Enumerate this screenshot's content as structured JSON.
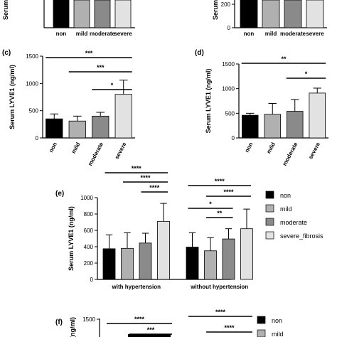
{
  "colors": {
    "non": "#000000",
    "mild": "#b0b0b0",
    "moderate": "#8a8a8a",
    "severe": "#e2e2e2"
  },
  "chart_data": [
    {
      "panel": "(a)",
      "type": "bar",
      "categories": [
        "non",
        "mild",
        "moderate",
        "severe"
      ],
      "values": [
        300,
        300,
        300,
        300
      ],
      "ylabel": "Serum",
      "yticks": [],
      "ylim": [
        0,
        300
      ]
    },
    {
      "panel": "(b)",
      "type": "bar",
      "categories": [
        "non",
        "mild",
        "moderate",
        "severe"
      ],
      "values": [
        1400,
        1400,
        1400,
        1400
      ],
      "ylabel": "Serum",
      "yticks": [
        "0",
        "200"
      ],
      "ylim": [
        0,
        400
      ]
    },
    {
      "panel": "(c)",
      "type": "bar",
      "categories": [
        "non",
        "mild",
        "moderate",
        "severe"
      ],
      "values": [
        350,
        310,
        400,
        800
      ],
      "errors": [
        90,
        90,
        70,
        260
      ],
      "ylabel": "Serum LYVE1 (ng/ml)",
      "yticks": [
        "0",
        "500",
        "1000",
        "1500"
      ],
      "ylim": [
        0,
        1500
      ],
      "significance": [
        {
          "from": 0,
          "to": 3,
          "label": "***"
        },
        {
          "from": 1,
          "to": 3,
          "label": "***"
        },
        {
          "from": 2,
          "to": 3,
          "label": "*"
        }
      ]
    },
    {
      "panel": "(d)",
      "type": "bar",
      "categories": [
        "non",
        "mild",
        "moderate",
        "severe"
      ],
      "values": [
        460,
        480,
        540,
        910
      ],
      "errors": [
        40,
        220,
        240,
        100
      ],
      "ylabel": "Serum LYVE1 (ng/ml)",
      "yticks": [
        "0",
        "500",
        "1000",
        "1500"
      ],
      "ylim": [
        0,
        1500
      ],
      "significance": [
        {
          "from": 0,
          "to": 3,
          "label": "**"
        },
        {
          "from": 2,
          "to": 3,
          "label": "*"
        }
      ]
    },
    {
      "panel": "(e)",
      "type": "bar",
      "groups": [
        "with hypertension",
        "without hypertension"
      ],
      "categories": [
        "non",
        "mild",
        "moderate",
        "severe_fibrosis"
      ],
      "series": [
        {
          "name": "with hypertension",
          "values": [
            375,
            380,
            445,
            710
          ],
          "errors": [
            170,
            190,
            120,
            220
          ]
        },
        {
          "name": "without hypertension",
          "values": [
            395,
            350,
            495,
            620
          ],
          "errors": [
            175,
            160,
            125,
            240
          ]
        }
      ],
      "ylabel": "Serum LYVE1 (ng/ml)",
      "yticks": [
        "0",
        "200",
        "400",
        "600",
        "800",
        "1000"
      ],
      "ylim": [
        0,
        1000
      ],
      "legend": [
        "non",
        "mild",
        "moderate",
        "severe_fibrosis"
      ],
      "significance": [
        {
          "group": 0,
          "from": 0,
          "to": 3,
          "label": "****"
        },
        {
          "group": 0,
          "from": 1,
          "to": 3,
          "label": "****"
        },
        {
          "group": 0,
          "from": 2,
          "to": 3,
          "label": "****"
        },
        {
          "group": 1,
          "from": 0,
          "to": 3,
          "label": "****"
        },
        {
          "group": 1,
          "from": 1,
          "to": 3,
          "label": "****"
        },
        {
          "group": 1,
          "from": 0,
          "to": 2,
          "label": "*"
        },
        {
          "group": 1,
          "from": 1,
          "to": 2,
          "label": "**"
        }
      ]
    },
    {
      "panel": "(f)",
      "type": "bar",
      "ylabel": "(ng/ml)",
      "yticks": [
        "1500"
      ],
      "legend": [
        "non",
        "mild"
      ],
      "significance_labels": [
        "****",
        "***",
        "****",
        "****"
      ]
    }
  ]
}
